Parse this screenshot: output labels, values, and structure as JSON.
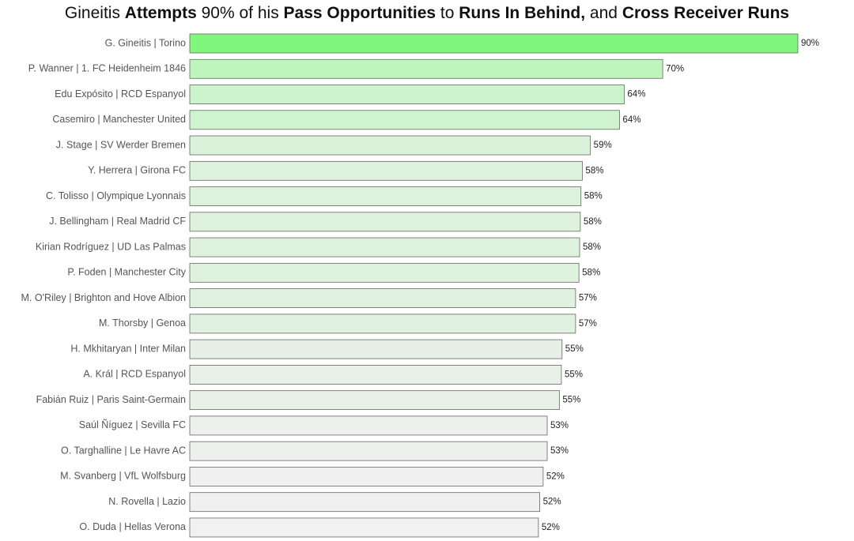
{
  "chart_data": {
    "type": "barh",
    "title_parts": [
      {
        "text": "Gineitis ",
        "bold": false
      },
      {
        "text": "Attempts",
        "bold": true
      },
      {
        "text": " 90% of his ",
        "bold": false
      },
      {
        "text": "Pass Opportunities",
        "bold": true
      },
      {
        "text": " to ",
        "bold": false
      },
      {
        "text": "Runs In Behind,",
        "bold": true
      },
      {
        "text": " and ",
        "bold": false
      },
      {
        "text": "Cross Receiver Runs",
        "bold": true
      }
    ],
    "categories": [
      "G. Gineitis | Torino",
      "P. Wanner | 1. FC Heidenheim 1846",
      "Edu Expósito | RCD Espanyol",
      "Casemiro | Manchester United",
      "J. Stage | SV Werder Bremen",
      "Y. Herrera | Girona FC",
      "C. Tolisso | Olympique Lyonnais",
      "J. Bellingham | Real Madrid CF",
      "Kirian Rodríguez | UD Las Palmas",
      "P. Foden | Manchester City",
      "M. O'Riley | Brighton and Hove Albion",
      "M. Thorsby | Genoa",
      "H. Mkhitaryan | Inter Milan",
      "A. Král | RCD Espanyol",
      "Fabián Ruiz | Paris Saint-Germain",
      "Saúl Ñíguez | Sevilla FC",
      "O. Targhalline | Le Havre AC",
      "M. Svanberg | VfL Wolfsburg",
      "N. Rovella | Lazio",
      "O. Duda | Hellas Verona"
    ],
    "values": [
      90,
      70,
      64.3,
      63.6,
      59.3,
      58.1,
      57.9,
      57.8,
      57.7,
      57.6,
      57.1,
      57.1,
      55.1,
      55.0,
      54.7,
      52.9,
      52.9,
      52.3,
      51.8,
      51.6
    ],
    "value_labels": [
      "90%",
      "70%",
      "64%",
      "64%",
      "59%",
      "58%",
      "58%",
      "58%",
      "58%",
      "58%",
      "57%",
      "57%",
      "55%",
      "55%",
      "55%",
      "53%",
      "53%",
      "52%",
      "52%",
      "52%"
    ],
    "colors": [
      "#80f77c",
      "#bdf5bc",
      "#cdf3cc",
      "#cff3ce",
      "#daf2d9",
      "#ddf2dc",
      "#ddf2dc",
      "#def2dd",
      "#def2dd",
      "#dff2de",
      "#e1f1e0",
      "#e1f1e0",
      "#e7f0e6",
      "#e8f0e7",
      "#e9f0e8",
      "#eef0ee",
      "#eef0ee",
      "#f0f0f0",
      "#f0f0f0",
      "#f1f1f1"
    ]
  }
}
